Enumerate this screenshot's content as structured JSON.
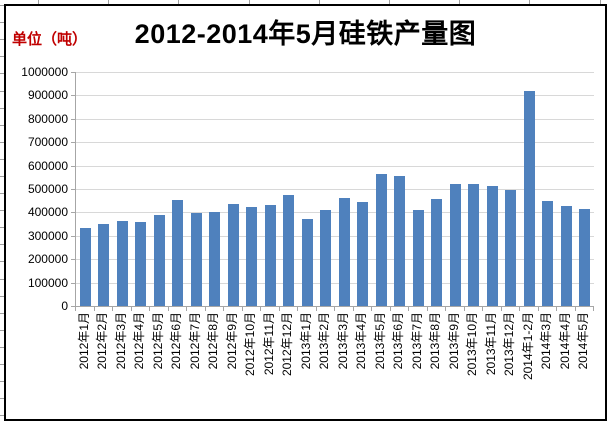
{
  "chart_data": {
    "type": "bar",
    "title": "2012-2014年5月硅铁产量图",
    "unit_label": "单位（吨）",
    "xlabel": "",
    "ylabel": "单位（吨）",
    "ylim": [
      0,
      1000000
    ],
    "ytick_step": 100000,
    "ytick_labels": [
      "1000000",
      "900000",
      "800000",
      "700000",
      "600000",
      "500000",
      "400000",
      "300000",
      "200000",
      "100000",
      "0"
    ],
    "grid": "horizontal",
    "legend": "none",
    "categories": [
      "2012年1月",
      "2012年2月",
      "2012年3月",
      "2012年4月",
      "2012年5月",
      "2012年6月",
      "2012年7月",
      "2012年8月",
      "2012年9月",
      "2012年10月",
      "2012年11月",
      "2012年12月",
      "2013年1月",
      "2013年2月",
      "2013年3月",
      "2013年4月",
      "2013年5月",
      "2013年6月",
      "2013年7月",
      "2013年8月",
      "2013年9月",
      "2013年10月",
      "2013年11月",
      "2013年12月",
      "2014年1-2月",
      "2014年3月",
      "2014年4月",
      "2014年5月"
    ],
    "values": [
      335000,
      352000,
      362000,
      358000,
      388000,
      452000,
      396000,
      402000,
      434000,
      424000,
      432000,
      476000,
      372000,
      410000,
      461000,
      444000,
      566000,
      557000,
      412000,
      456000,
      520000,
      521000,
      513000,
      494000,
      920000,
      448000,
      429000,
      413000
    ],
    "colors": {
      "bar": "#4F81BD",
      "gridline": "#D8D8D8",
      "axis": "#A6A6A6",
      "title": "#000000",
      "unit_label": "#C00000",
      "frame_border": "#000000"
    }
  }
}
